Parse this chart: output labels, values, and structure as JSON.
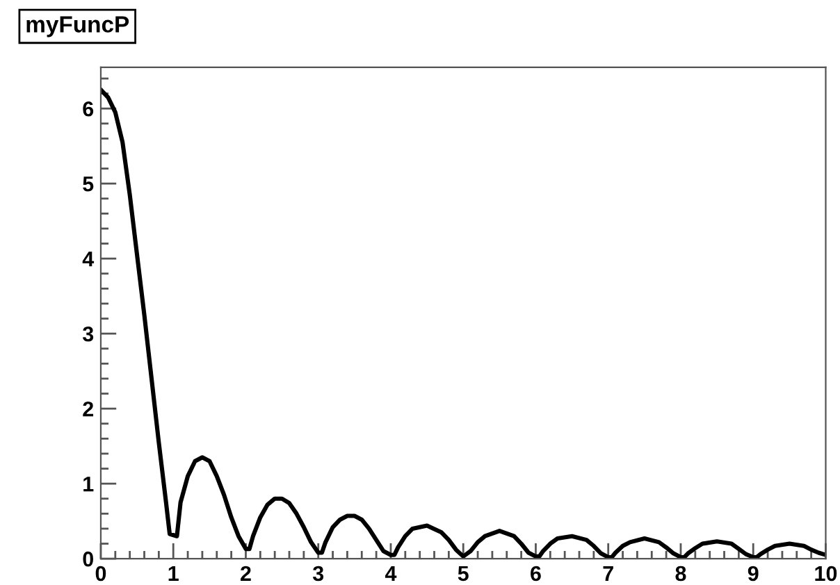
{
  "chart_data": {
    "type": "line",
    "title": "myFuncP",
    "x": [
      0,
      0.1,
      0.2,
      0.3,
      0.4,
      0.5,
      0.6,
      0.7,
      0.8,
      0.9,
      0.95,
      1.05,
      1.1,
      1.2,
      1.3,
      1.4,
      1.5,
      1.6,
      1.7,
      1.8,
      1.9,
      2.0,
      2.05,
      2.1,
      2.2,
      2.3,
      2.4,
      2.5,
      2.6,
      2.7,
      2.8,
      2.9,
      3.0,
      3.05,
      3.1,
      3.2,
      3.3,
      3.4,
      3.5,
      3.6,
      3.7,
      3.8,
      3.9,
      4.0,
      4.05,
      4.1,
      4.2,
      4.3,
      4.5,
      4.7,
      4.8,
      4.9,
      5.0,
      5.1,
      5.2,
      5.3,
      5.5,
      5.7,
      5.8,
      5.9,
      6.0,
      6.05,
      6.1,
      6.2,
      6.3,
      6.5,
      6.7,
      6.8,
      6.9,
      7.0,
      7.05,
      7.1,
      7.2,
      7.3,
      7.5,
      7.7,
      7.8,
      7.9,
      8.0,
      8.05,
      8.1,
      8.2,
      8.3,
      8.5,
      8.7,
      8.8,
      8.9,
      9.0,
      9.05,
      9.1,
      9.2,
      9.3,
      9.5,
      9.7,
      9.8,
      9.9,
      10.0
    ],
    "values": [
      6.25,
      6.15,
      5.95,
      5.55,
      4.85,
      4.05,
      3.25,
      2.4,
      1.55,
      0.75,
      0.33,
      0.3,
      0.75,
      1.1,
      1.3,
      1.35,
      1.3,
      1.1,
      0.85,
      0.55,
      0.3,
      0.13,
      0.13,
      0.3,
      0.55,
      0.72,
      0.8,
      0.8,
      0.74,
      0.6,
      0.42,
      0.22,
      0.08,
      0.08,
      0.22,
      0.42,
      0.52,
      0.57,
      0.57,
      0.52,
      0.4,
      0.25,
      0.1,
      0.05,
      0.05,
      0.15,
      0.3,
      0.4,
      0.44,
      0.35,
      0.25,
      0.12,
      0.03,
      0.1,
      0.22,
      0.3,
      0.37,
      0.3,
      0.2,
      0.08,
      0.03,
      0.03,
      0.1,
      0.2,
      0.27,
      0.3,
      0.25,
      0.17,
      0.07,
      0.02,
      0.02,
      0.08,
      0.17,
      0.22,
      0.27,
      0.22,
      0.15,
      0.07,
      0.02,
      0.02,
      0.07,
      0.14,
      0.2,
      0.23,
      0.2,
      0.13,
      0.06,
      0.02,
      0.02,
      0.06,
      0.12,
      0.17,
      0.2,
      0.17,
      0.12,
      0.08,
      0.05
    ],
    "color": "#000000",
    "xlim": [
      0,
      10
    ],
    "xticks": [
      0,
      1,
      2,
      3,
      4,
      5,
      6,
      7,
      8,
      9,
      10
    ],
    "ylim": [
      0,
      6.55
    ],
    "yticks": [
      0,
      1,
      2,
      3,
      4,
      5,
      6
    ],
    "grid": false,
    "legend": false,
    "marker": "none",
    "line_style": "solid"
  }
}
